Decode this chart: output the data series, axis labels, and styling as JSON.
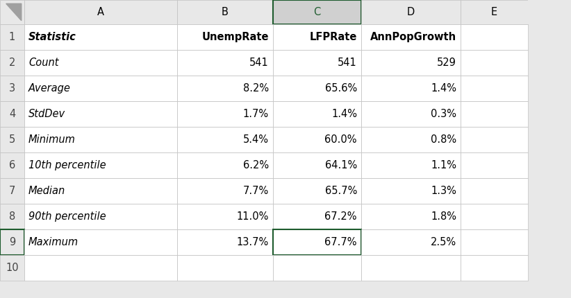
{
  "col_headers": [
    "A",
    "B",
    "C",
    "D",
    "E"
  ],
  "row_numbers": [
    "1",
    "2",
    "3",
    "4",
    "5",
    "6",
    "7",
    "8",
    "9",
    "10"
  ],
  "header_row": [
    "Statistic",
    "UnempRate",
    "LFPRate",
    "AnnPopGrowth",
    ""
  ],
  "rows": [
    [
      "Count",
      "541",
      "541",
      "529",
      ""
    ],
    [
      "Average",
      "8.2%",
      "65.6%",
      "1.4%",
      ""
    ],
    [
      "StdDev",
      "1.7%",
      "1.4%",
      "0.3%",
      ""
    ],
    [
      "Minimum",
      "5.4%",
      "60.0%",
      "0.8%",
      ""
    ],
    [
      "10th percentile",
      "6.2%",
      "64.1%",
      "1.1%",
      ""
    ],
    [
      "Median",
      "7.7%",
      "65.7%",
      "1.3%",
      ""
    ],
    [
      "90th percentile",
      "11.0%",
      "67.2%",
      "1.8%",
      ""
    ],
    [
      "Maximum",
      "13.7%",
      "67.7%",
      "2.5%",
      ""
    ]
  ],
  "header_bg": "#e8e8e8",
  "col_header_bg": "#e8e8e8",
  "selected_col_bg": "#d0d0d0",
  "cell_bg": "#ffffff",
  "grid_color": "#c0c0c0",
  "selected_border_color": "#1e5c2e",
  "text_color": "#000000",
  "row_num_color": "#444444",
  "row9_bg": "#f0f0f0",
  "font_size": 10.5
}
